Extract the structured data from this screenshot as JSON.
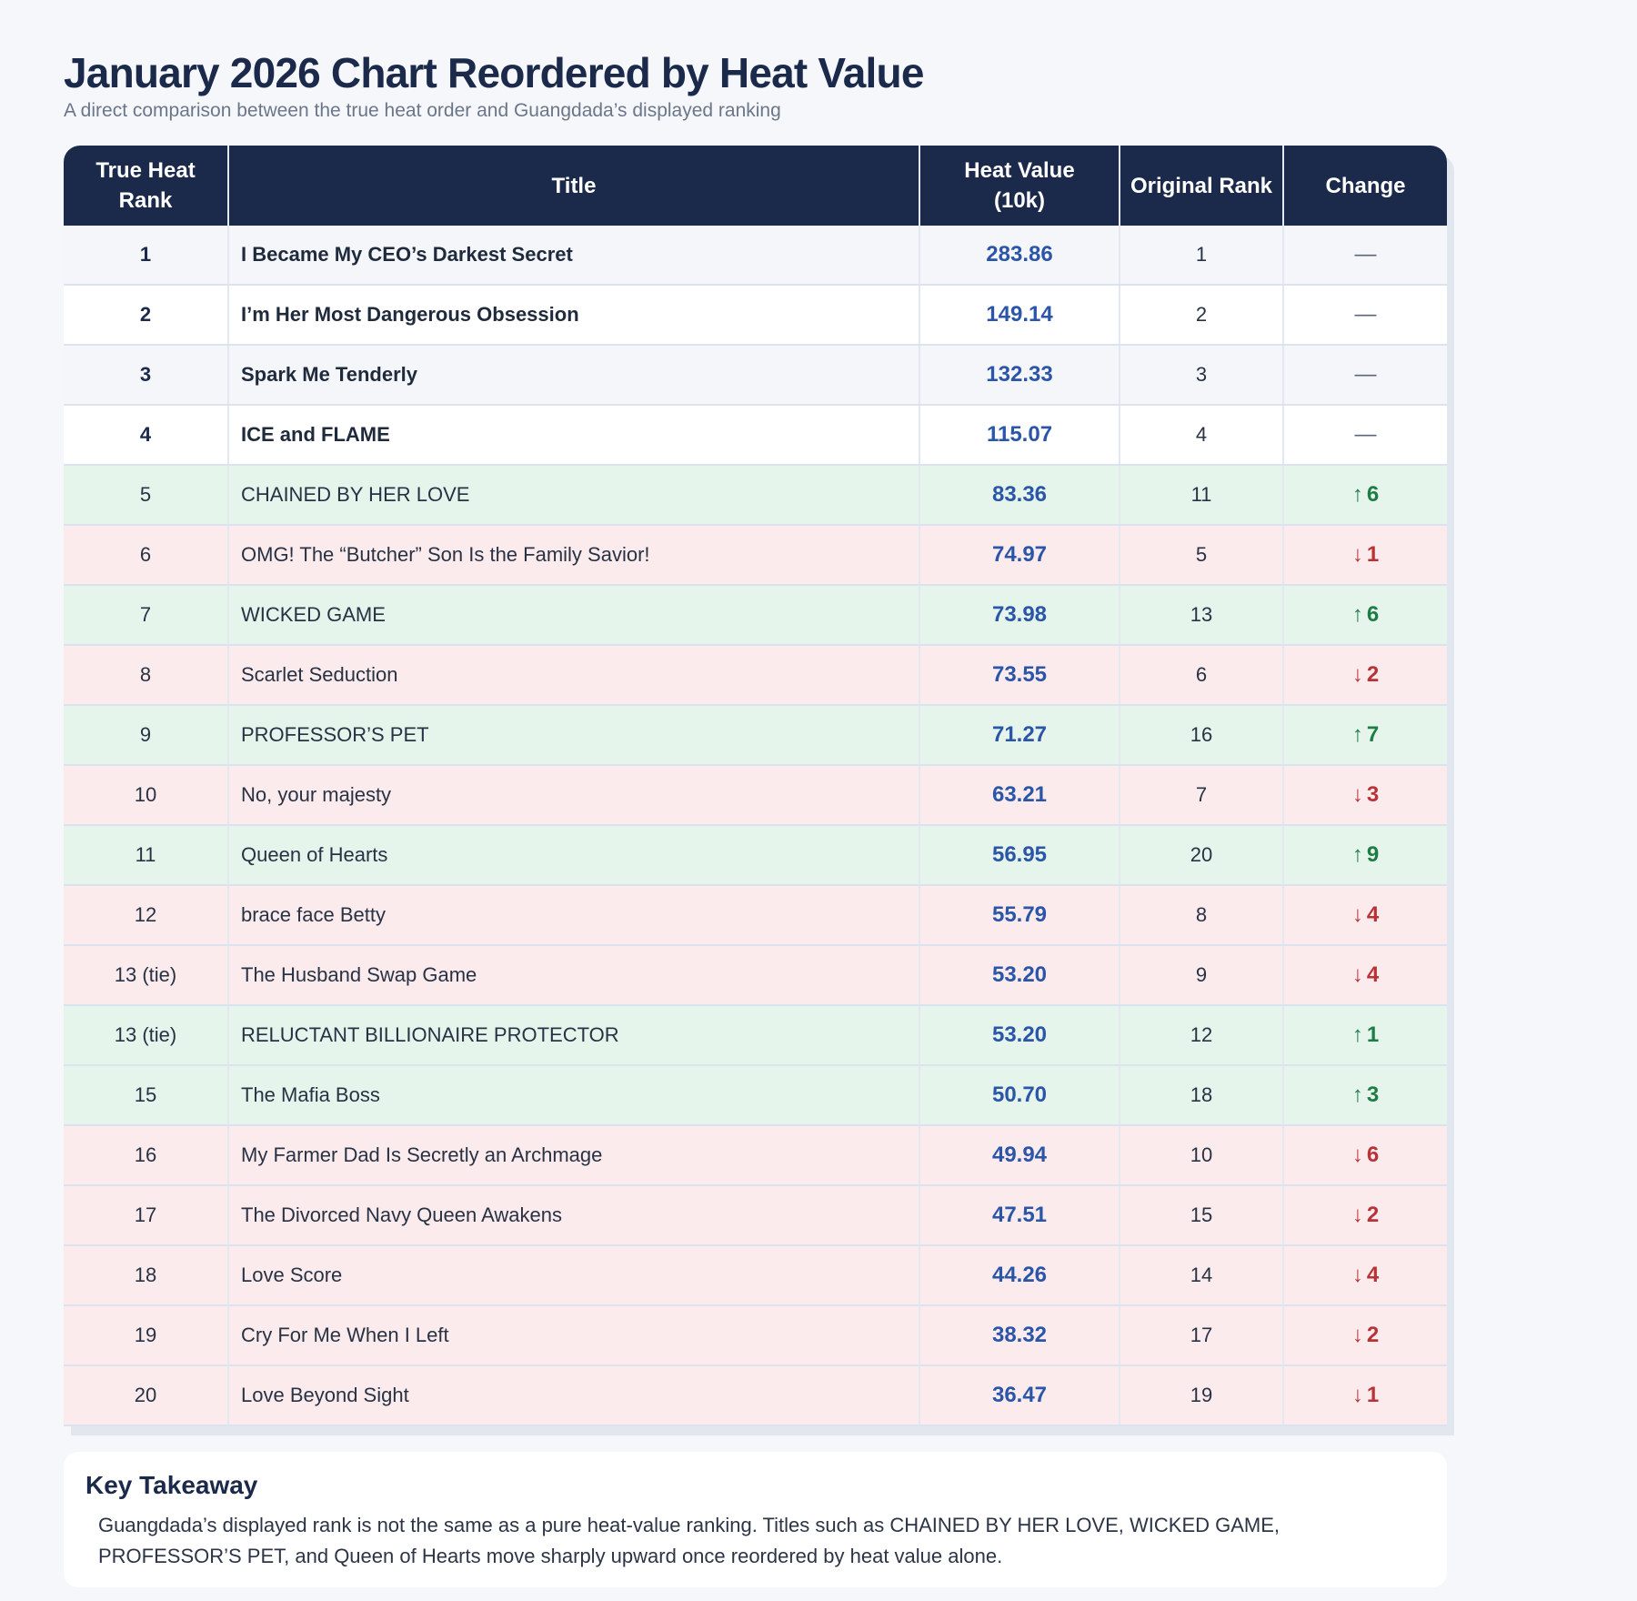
{
  "header": {
    "title": "January 2026 Chart Reordered by Heat Value",
    "subtitle": "A direct comparison between the true heat order and Guangdada’s displayed ranking"
  },
  "colors": {
    "header_bg": "#1b2a4a",
    "heat_value": "#2a55a8",
    "up_row": "#e5f5ec",
    "down_row": "#fbebec",
    "up_text": "#1e7d45",
    "down_text": "#b83236"
  },
  "table": {
    "columns": [
      "True Heat Rank",
      "Title",
      "Heat Value (10k)",
      "Original Rank",
      "Change"
    ],
    "rows": [
      {
        "rank": "1",
        "title": "I Became My CEO’s Darkest Secret",
        "heat": "283.86",
        "original": "1",
        "change": "—",
        "direction": "none"
      },
      {
        "rank": "2",
        "title": "I’m Her Most Dangerous Obsession",
        "heat": "149.14",
        "original": "2",
        "change": "—",
        "direction": "none"
      },
      {
        "rank": "3",
        "title": "Spark Me Tenderly",
        "heat": "132.33",
        "original": "3",
        "change": "—",
        "direction": "none"
      },
      {
        "rank": "4",
        "title": "ICE and FLAME",
        "heat": "115.07",
        "original": "4",
        "change": "—",
        "direction": "none"
      },
      {
        "rank": "5",
        "title": "CHAINED BY HER LOVE",
        "heat": "83.36",
        "original": "11",
        "change": "6",
        "direction": "up"
      },
      {
        "rank": "6",
        "title": "OMG! The “Butcher” Son Is the Family Savior!",
        "heat": "74.97",
        "original": "5",
        "change": "1",
        "direction": "down"
      },
      {
        "rank": "7",
        "title": "WICKED GAME",
        "heat": "73.98",
        "original": "13",
        "change": "6",
        "direction": "up"
      },
      {
        "rank": "8",
        "title": "Scarlet Seduction",
        "heat": "73.55",
        "original": "6",
        "change": "2",
        "direction": "down"
      },
      {
        "rank": "9",
        "title": "PROFESSOR’S PET",
        "heat": "71.27",
        "original": "16",
        "change": "7",
        "direction": "up"
      },
      {
        "rank": "10",
        "title": "No, your majesty",
        "heat": "63.21",
        "original": "7",
        "change": "3",
        "direction": "down"
      },
      {
        "rank": "11",
        "title": "Queen of Hearts",
        "heat": "56.95",
        "original": "20",
        "change": "9",
        "direction": "up"
      },
      {
        "rank": "12",
        "title": "brace face Betty",
        "heat": "55.79",
        "original": "8",
        "change": "4",
        "direction": "down"
      },
      {
        "rank": "13 (tie)",
        "title": "The Husband Swap Game",
        "heat": "53.20",
        "original": "9",
        "change": "4",
        "direction": "down"
      },
      {
        "rank": "13 (tie)",
        "title": "RELUCTANT BILLIONAIRE PROTECTOR",
        "heat": "53.20",
        "original": "12",
        "change": "1",
        "direction": "up"
      },
      {
        "rank": "15",
        "title": "The Mafia Boss",
        "heat": "50.70",
        "original": "18",
        "change": "3",
        "direction": "up"
      },
      {
        "rank": "16",
        "title": "My Farmer Dad Is Secretly an Archmage",
        "heat": "49.94",
        "original": "10",
        "change": "6",
        "direction": "down"
      },
      {
        "rank": "17",
        "title": "The Divorced Navy Queen Awakens",
        "heat": "47.51",
        "original": "15",
        "change": "2",
        "direction": "down"
      },
      {
        "rank": "18",
        "title": "Love Score",
        "heat": "44.26",
        "original": "14",
        "change": "4",
        "direction": "down"
      },
      {
        "rank": "19",
        "title": "Cry For Me When I Left",
        "heat": "38.32",
        "original": "17",
        "change": "2",
        "direction": "down"
      },
      {
        "rank": "20",
        "title": "Love Beyond Sight",
        "heat": "36.47",
        "original": "19",
        "change": "1",
        "direction": "down"
      }
    ]
  },
  "icons": {
    "up": "↑",
    "down": "↓"
  },
  "takeaway": {
    "heading": "Key Takeaway",
    "body": "Guangdada’s displayed rank is not the same as a pure heat-value ranking. Titles such as CHAINED BY HER LOVE, WICKED GAME, PROFESSOR’S PET, and Queen of Hearts move sharply upward once reordered by heat value alone."
  }
}
